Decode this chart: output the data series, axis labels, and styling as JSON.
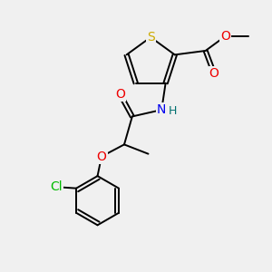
{
  "bg_color": "#f0f0f0",
  "atom_colors": {
    "S": "#ccaa00",
    "N": "#0000ee",
    "O": "#ee0000",
    "Cl": "#00bb00",
    "H": "#007070",
    "C": "#000000"
  },
  "bond_color": "#000000",
  "lw": 1.4,
  "fs": 9.5
}
